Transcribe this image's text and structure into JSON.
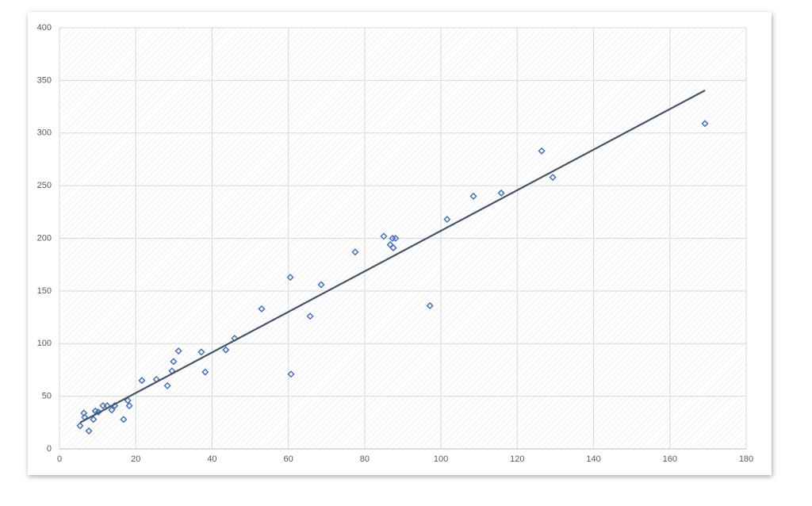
{
  "chart_data": {
    "type": "scatter",
    "series": [
      {
        "color": "#4472c4",
        "x": [
          5.4,
          6.4,
          6.6,
          7.7,
          8.9,
          9.4,
          10.2,
          11.4,
          12.5,
          13.7,
          14.5,
          16.8,
          17.9,
          18.3,
          21.6,
          25.4,
          28.3,
          29.5,
          29.9,
          31.2,
          37.2,
          38.2,
          43.6,
          45.9,
          53.0,
          60.5,
          60.7,
          65.7,
          68.6,
          77.5,
          85.0,
          86.7,
          87.3,
          87.5,
          88.1,
          97.1,
          101.6,
          108.5,
          115.8,
          126.4,
          129.3,
          169.2
        ],
        "values": [
          22,
          34,
          30,
          17,
          28,
          36,
          35,
          41,
          41,
          37,
          41,
          28,
          46,
          41,
          65,
          66,
          60,
          74,
          83,
          93,
          92,
          73,
          94,
          105,
          133,
          163,
          71,
          126,
          156,
          187,
          202,
          194,
          200,
          191,
          200,
          136,
          218,
          240,
          243,
          283,
          258,
          309
        ]
      }
    ],
    "trendline": {
      "color": "#44546a",
      "x": [
        5.4,
        169.2
      ],
      "values": [
        25,
        340.5
      ]
    },
    "xlim": [
      0,
      180
    ],
    "xticks": [
      0,
      20,
      40,
      60,
      80,
      100,
      120,
      140,
      160,
      180
    ],
    "ylim": [
      0,
      400
    ],
    "yticks": [
      0,
      50,
      100,
      150,
      200,
      250,
      300,
      350,
      400
    ],
    "grid": true
  }
}
